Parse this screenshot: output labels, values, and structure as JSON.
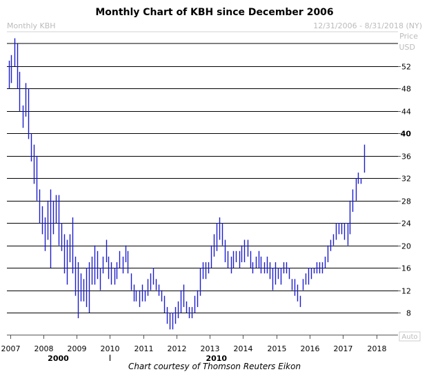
{
  "chart_data": {
    "type": "ohlc-bar",
    "title": "Monthly Chart of KBH since December 2006",
    "series_label": "Monthly KBH",
    "date_range": "12/31/2006 - 8/31/2018 (NY)",
    "axis_unit_label": [
      "Price",
      "USD"
    ],
    "auto_label": "Auto",
    "x_tick_labels": [
      "2007",
      "2008",
      "2009",
      "2010",
      "2011",
      "2012",
      "2013",
      "2014",
      "2015",
      "2016",
      "2017",
      "2018"
    ],
    "x_decade_labels": [
      {
        "label": "2000",
        "year": 2008.45
      },
      {
        "label": "2010",
        "year": 2013.2
      }
    ],
    "decade_divider_year": 2010.0,
    "y_ticks": [
      8,
      12,
      16,
      20,
      24,
      28,
      32,
      36,
      40,
      44,
      48,
      52
    ],
    "y_tick_bold": [
      40
    ],
    "ylim": [
      4,
      55
    ],
    "xlim": [
      2006.9,
      2018.8
    ],
    "bar_color": "#1a1acc",
    "grid": "horizontal",
    "bars": [
      [
        2006.96,
        53,
        48
      ],
      [
        2007.04,
        54,
        49
      ],
      [
        2007.13,
        57,
        52
      ],
      [
        2007.21,
        56,
        48
      ],
      [
        2007.29,
        51,
        44
      ],
      [
        2007.38,
        45,
        41
      ],
      [
        2007.46,
        49,
        43
      ],
      [
        2007.54,
        48,
        39
      ],
      [
        2007.63,
        40,
        35
      ],
      [
        2007.71,
        38,
        31
      ],
      [
        2007.79,
        36,
        28
      ],
      [
        2007.88,
        30,
        24
      ],
      [
        2007.96,
        27,
        22
      ],
      [
        2008.04,
        25,
        19
      ],
      [
        2008.13,
        28,
        21
      ],
      [
        2008.21,
        30,
        16
      ],
      [
        2008.29,
        28,
        22
      ],
      [
        2008.38,
        29,
        24
      ],
      [
        2008.46,
        29,
        20
      ],
      [
        2008.54,
        24,
        19
      ],
      [
        2008.63,
        22,
        15
      ],
      [
        2008.71,
        21,
        13
      ],
      [
        2008.79,
        22,
        17
      ],
      [
        2008.88,
        25,
        15
      ],
      [
        2008.96,
        18,
        11
      ],
      [
        2009.04,
        17,
        7
      ],
      [
        2009.13,
        15,
        10
      ],
      [
        2009.21,
        14,
        10
      ],
      [
        2009.29,
        16,
        9
      ],
      [
        2009.38,
        17,
        8
      ],
      [
        2009.46,
        18,
        13
      ],
      [
        2009.54,
        20,
        13
      ],
      [
        2009.63,
        19,
        14
      ],
      [
        2009.71,
        16,
        12
      ],
      [
        2009.79,
        18,
        15
      ],
      [
        2009.88,
        21,
        17
      ],
      [
        2009.96,
        18,
        14
      ],
      [
        2010.04,
        17,
        13
      ],
      [
        2010.13,
        16,
        13
      ],
      [
        2010.21,
        17,
        14
      ],
      [
        2010.29,
        19,
        16
      ],
      [
        2010.38,
        18,
        15
      ],
      [
        2010.46,
        20,
        17
      ],
      [
        2010.54,
        19,
        15
      ],
      [
        2010.63,
        15,
        12
      ],
      [
        2010.71,
        13,
        10
      ],
      [
        2010.79,
        12,
        10
      ],
      [
        2010.88,
        12,
        9
      ],
      [
        2010.96,
        13,
        10
      ],
      [
        2011.04,
        12,
        10
      ],
      [
        2011.13,
        14,
        11
      ],
      [
        2011.21,
        15,
        12
      ],
      [
        2011.29,
        16,
        13
      ],
      [
        2011.38,
        14,
        12
      ],
      [
        2011.46,
        13,
        11
      ],
      [
        2011.54,
        12,
        10
      ],
      [
        2011.63,
        11,
        8
      ],
      [
        2011.71,
        9,
        6
      ],
      [
        2011.79,
        8,
        5
      ],
      [
        2011.88,
        8,
        5
      ],
      [
        2011.96,
        9,
        6
      ],
      [
        2012.04,
        10,
        7
      ],
      [
        2012.13,
        12,
        8
      ],
      [
        2012.21,
        13,
        9
      ],
      [
        2012.29,
        10,
        8
      ],
      [
        2012.38,
        9,
        7
      ],
      [
        2012.46,
        9,
        7
      ],
      [
        2012.54,
        11,
        8
      ],
      [
        2012.63,
        12,
        9
      ],
      [
        2012.71,
        16,
        11
      ],
      [
        2012.79,
        17,
        14
      ],
      [
        2012.88,
        17,
        14
      ],
      [
        2012.96,
        17,
        15
      ],
      [
        2013.04,
        20,
        16
      ],
      [
        2013.13,
        22,
        18
      ],
      [
        2013.21,
        24,
        19
      ],
      [
        2013.29,
        25,
        21
      ],
      [
        2013.38,
        24,
        20
      ],
      [
        2013.46,
        21,
        17
      ],
      [
        2013.54,
        19,
        16
      ],
      [
        2013.63,
        18,
        15
      ],
      [
        2013.71,
        19,
        16
      ],
      [
        2013.79,
        19,
        17
      ],
      [
        2013.88,
        19,
        16
      ],
      [
        2013.96,
        20,
        17
      ],
      [
        2014.04,
        21,
        17
      ],
      [
        2014.13,
        21,
        18
      ],
      [
        2014.21,
        19,
        16
      ],
      [
        2014.29,
        17,
        15
      ],
      [
        2014.38,
        18,
        16
      ],
      [
        2014.46,
        19,
        16
      ],
      [
        2014.54,
        18,
        15
      ],
      [
        2014.63,
        17,
        15
      ],
      [
        2014.71,
        18,
        15
      ],
      [
        2014.79,
        17,
        14
      ],
      [
        2014.88,
        16,
        12
      ],
      [
        2014.96,
        17,
        13
      ],
      [
        2015.04,
        16,
        14
      ],
      [
        2015.13,
        16,
        13
      ],
      [
        2015.21,
        17,
        15
      ],
      [
        2015.29,
        17,
        15
      ],
      [
        2015.38,
        16,
        14
      ],
      [
        2015.46,
        14,
        12
      ],
      [
        2015.54,
        14,
        11
      ],
      [
        2015.63,
        13,
        10
      ],
      [
        2015.71,
        11,
        9
      ],
      [
        2015.79,
        14,
        12
      ],
      [
        2015.88,
        15,
        13
      ],
      [
        2015.96,
        16,
        13
      ],
      [
        2016.04,
        16,
        14
      ],
      [
        2016.13,
        16,
        15
      ],
      [
        2016.21,
        17,
        15
      ],
      [
        2016.29,
        17,
        15
      ],
      [
        2016.38,
        17,
        15
      ],
      [
        2016.46,
        18,
        16
      ],
      [
        2016.54,
        20,
        17
      ],
      [
        2016.63,
        21,
        19
      ],
      [
        2016.71,
        22,
        20
      ],
      [
        2016.79,
        24,
        21
      ],
      [
        2016.88,
        24,
        22
      ],
      [
        2016.96,
        24,
        22
      ],
      [
        2017.04,
        24,
        21
      ],
      [
        2017.13,
        24,
        20
      ],
      [
        2017.21,
        28,
        22
      ],
      [
        2017.29,
        30,
        26
      ],
      [
        2017.38,
        32,
        28
      ],
      [
        2017.46,
        33,
        31
      ],
      [
        2017.54,
        32,
        31
      ],
      [
        2017.63,
        38,
        33
      ]
    ]
  },
  "caption": "Chart courtesy of Thomson Reuters Eikon"
}
